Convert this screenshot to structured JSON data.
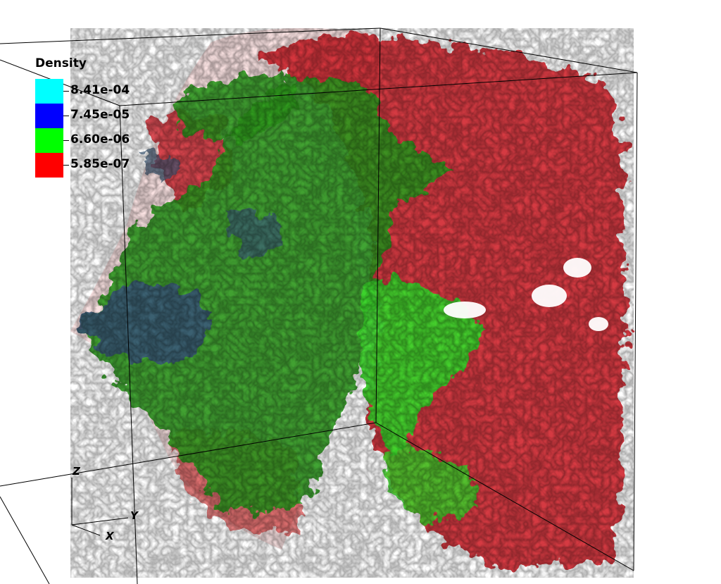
{
  "legend": {
    "title": "Density",
    "items": [
      {
        "label": "8.41e-04",
        "color": "#00ffff"
      },
      {
        "label": "7.45e-05",
        "color": "#0000ff"
      },
      {
        "label": "6.60e-06",
        "color": "#00ff00"
      },
      {
        "label": "5.85e-07",
        "color": "#ff0000"
      }
    ]
  },
  "axes": {
    "x": "X",
    "y": "Y",
    "z": "Z"
  },
  "colors": {
    "red_iso": "#cc1418",
    "green_iso": "#2e9a1c",
    "bright_green_iso": "#3cd62c",
    "blue_iso": "#3a5a78",
    "pink_shell": "#f4c8c8"
  }
}
